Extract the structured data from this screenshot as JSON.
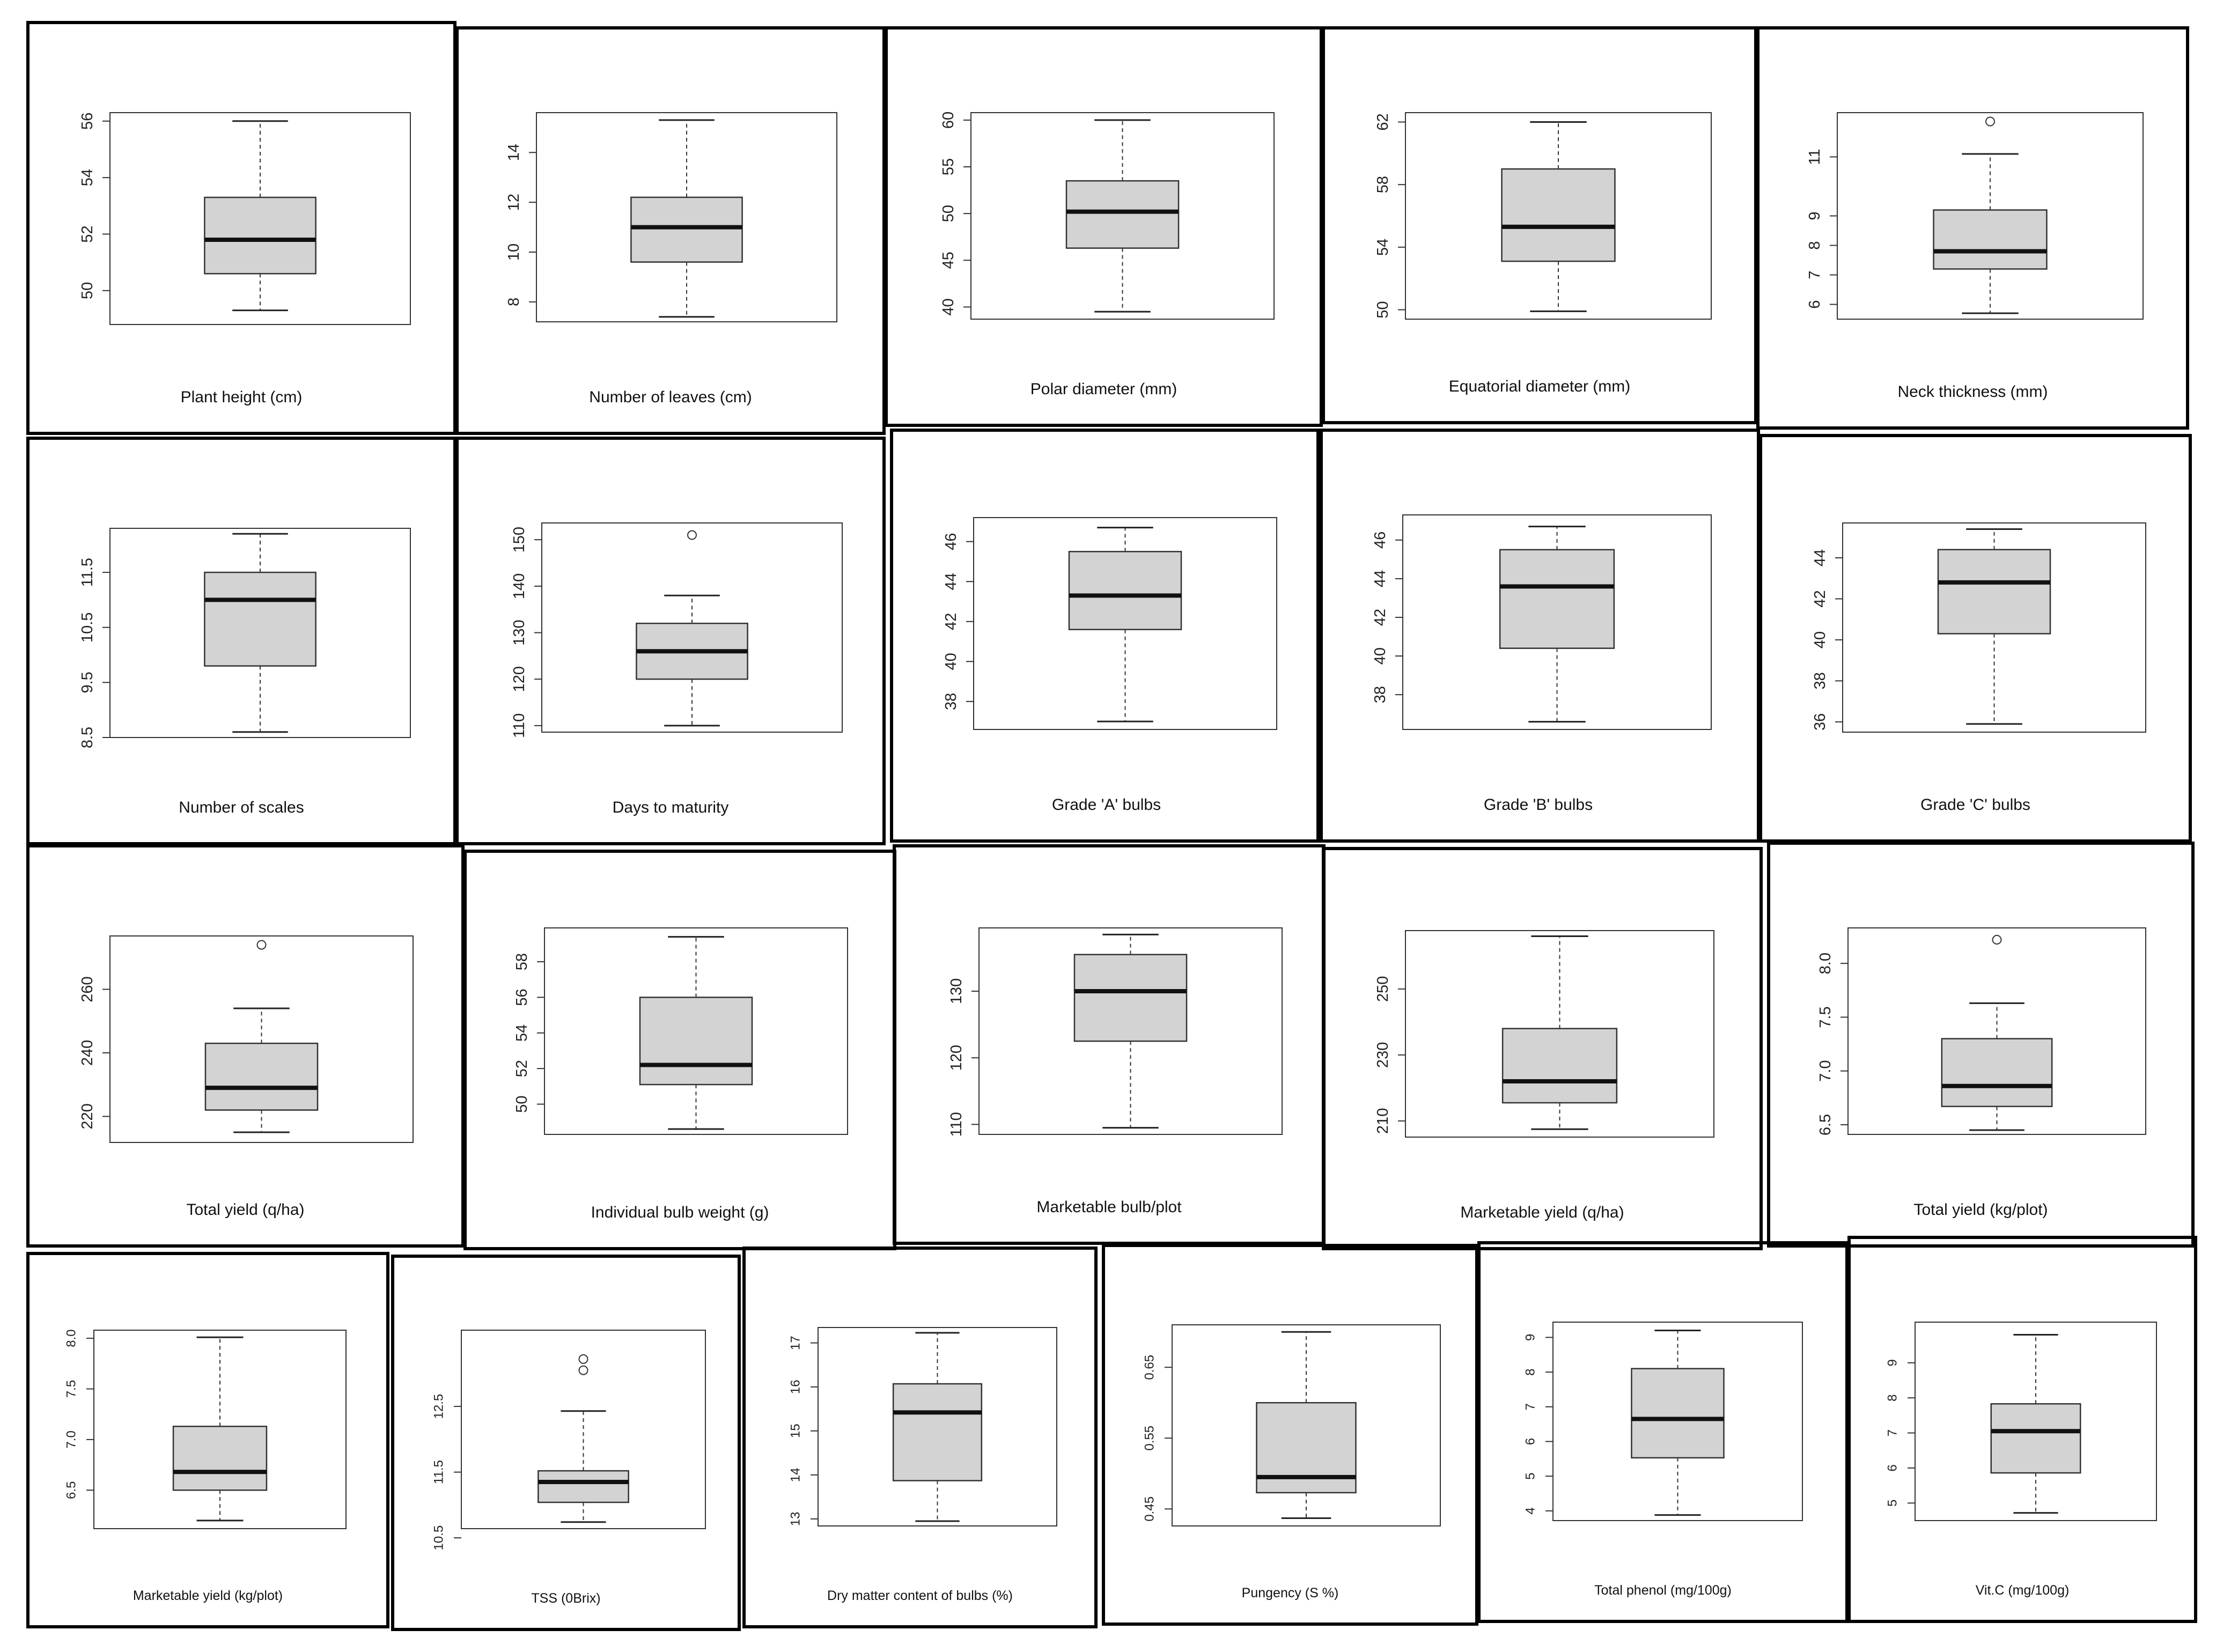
{
  "chart_data": [
    {
      "type": "box",
      "xlabel": "Plant height (cm)",
      "ylim": [
        48.8,
        56.3
      ],
      "ticks": [
        "50",
        "52",
        "54",
        "56"
      ],
      "box": {
        "min": 49.3,
        "q1": 50.6,
        "median": 51.8,
        "q3": 53.3,
        "max": 56.0,
        "outliers": []
      }
    },
    {
      "type": "box",
      "xlabel": "Number of leaves (cm)",
      "ylim": [
        7.2,
        15.6
      ],
      "ticks": [
        "8",
        "10",
        "12",
        "14"
      ],
      "box": {
        "min": 7.4,
        "q1": 9.6,
        "median": 11.0,
        "q3": 12.2,
        "max": 15.3,
        "outliers": []
      }
    },
    {
      "type": "box",
      "xlabel": "Polar diameter (mm)",
      "ylim": [
        38.7,
        60.8
      ],
      "ticks": [
        "40",
        "45",
        "50",
        "55",
        "60"
      ],
      "box": {
        "min": 39.5,
        "q1": 46.3,
        "median": 50.2,
        "q3": 53.5,
        "max": 60.0,
        "outliers": []
      }
    },
    {
      "type": "box",
      "xlabel": "Equatorial diameter (mm)",
      "ylim": [
        49.4,
        62.6
      ],
      "ticks": [
        "50",
        "54",
        "58",
        "62"
      ],
      "box": {
        "min": 49.9,
        "q1": 53.1,
        "median": 55.3,
        "q3": 59.0,
        "max": 62.0,
        "outliers": []
      }
    },
    {
      "type": "box",
      "xlabel": "Neck thickness (mm)",
      "ylim": [
        5.5,
        12.5
      ],
      "ticks": [
        "6",
        "7",
        "8",
        "9",
        "11"
      ],
      "box": {
        "min": 5.7,
        "q1": 7.2,
        "median": 7.8,
        "q3": 9.2,
        "max": 11.1,
        "outliers": [
          12.2
        ]
      }
    },
    {
      "type": "box",
      "xlabel": "Number of scales",
      "ylim": [
        8.5,
        12.3
      ],
      "ticks": [
        "8.5",
        "9.5",
        "10.5",
        "11.5"
      ],
      "box": {
        "min": 8.6,
        "q1": 9.8,
        "median": 11.0,
        "q3": 11.5,
        "max": 12.2,
        "outliers": []
      }
    },
    {
      "type": "box",
      "xlabel": "Days to maturity",
      "ylim": [
        108.6,
        153.6
      ],
      "ticks": [
        "110",
        "120",
        "130",
        "140",
        "150"
      ],
      "box": {
        "min": 110,
        "q1": 120,
        "median": 126,
        "q3": 132,
        "max": 138,
        "outliers": [
          151
        ]
      }
    },
    {
      "type": "box",
      "xlabel": "Grade 'A' bulbs",
      "ylim": [
        36.6,
        47.2
      ],
      "ticks": [
        "38",
        "40",
        "42",
        "44",
        "46"
      ],
      "box": {
        "min": 37.0,
        "q1": 41.6,
        "median": 43.3,
        "q3": 45.5,
        "max": 46.7,
        "outliers": []
      }
    },
    {
      "type": "box",
      "xlabel": "Grade 'B' bulbs",
      "ylim": [
        36.2,
        47.3
      ],
      "ticks": [
        "38",
        "40",
        "42",
        "44",
        "46"
      ],
      "box": {
        "min": 36.6,
        "q1": 40.4,
        "median": 43.6,
        "q3": 45.5,
        "max": 46.7,
        "outliers": []
      }
    },
    {
      "type": "box",
      "xlabel": "Grade 'C' bulbs",
      "ylim": [
        35.5,
        45.7
      ],
      "ticks": [
        "36",
        "38",
        "40",
        "42",
        "44"
      ],
      "box": {
        "min": 35.9,
        "q1": 40.3,
        "median": 42.8,
        "q3": 44.4,
        "max": 45.4,
        "outliers": []
      }
    },
    {
      "type": "box",
      "xlabel": "Total yield (q/ha)",
      "ylim": [
        211.8,
        276.8
      ],
      "ticks": [
        "220",
        "240",
        "260"
      ],
      "box": {
        "min": 215,
        "q1": 222,
        "median": 229,
        "q3": 243,
        "max": 254,
        "outliers": [
          274
        ]
      }
    },
    {
      "type": "box",
      "xlabel": "Individual bulb weight (g)",
      "ylim": [
        48.3,
        59.9
      ],
      "ticks": [
        "50",
        "52",
        "54",
        "56",
        "58"
      ],
      "box": {
        "min": 48.6,
        "q1": 51.1,
        "median": 52.2,
        "q3": 56.0,
        "max": 59.4,
        "outliers": []
      }
    },
    {
      "type": "box",
      "xlabel": "Marketable bulb/plot",
      "ylim": [
        108.5,
        139.5
      ],
      "ticks": [
        "110",
        "120",
        "130"
      ],
      "box": {
        "min": 109.5,
        "q1": 122.5,
        "median": 130.0,
        "q3": 135.5,
        "max": 138.5,
        "outliers": []
      }
    },
    {
      "type": "box",
      "xlabel": "Marketable yield (q/ha)",
      "ylim": [
        205.1,
        267.7
      ],
      "ticks": [
        "210",
        "230",
        "250"
      ],
      "box": {
        "min": 207.5,
        "q1": 215.5,
        "median": 222,
        "q3": 238,
        "max": 266,
        "outliers": []
      }
    },
    {
      "type": "box",
      "xlabel": "Total yield (kg/plot)",
      "ylim": [
        6.41,
        8.33
      ],
      "ticks": [
        "6.5",
        "7.0",
        "7.5",
        "8.0"
      ],
      "box": {
        "min": 6.45,
        "q1": 6.67,
        "median": 6.86,
        "q3": 7.3,
        "max": 7.63,
        "outliers": [
          8.22
        ]
      }
    },
    {
      "type": "box",
      "xlabel": "Marketable yield (kg/plot)",
      "ylim": [
        6.12,
        8.08
      ],
      "ticks": [
        "6.5",
        "7.0",
        "7.5",
        "8.0"
      ],
      "box": {
        "min": 6.2,
        "q1": 6.5,
        "median": 6.68,
        "q3": 7.13,
        "max": 8.01,
        "outliers": []
      }
    },
    {
      "type": "box",
      "xlabel": "TSS (0Brix)",
      "ylim": [
        10.64,
        13.66
      ],
      "ticks": [
        "10.5",
        "11.5",
        "12.5"
      ],
      "box": {
        "min": 10.74,
        "q1": 11.04,
        "median": 11.35,
        "q3": 11.52,
        "max": 12.43,
        "outliers": [
          13.05,
          13.22
        ]
      }
    },
    {
      "type": "box",
      "xlabel": "Dry matter content of bulbs (%)",
      "ylim": [
        12.84,
        17.35
      ],
      "ticks": [
        "13",
        "14",
        "15",
        "16",
        "17"
      ],
      "box": {
        "min": 12.95,
        "q1": 13.87,
        "median": 15.42,
        "q3": 16.07,
        "max": 17.23,
        "outliers": []
      }
    },
    {
      "type": "box",
      "xlabel": "Pungency (S %)",
      "ylim": [
        0.426,
        0.71
      ],
      "ticks": [
        "0.45",
        "0.55",
        "0.65"
      ],
      "box": {
        "min": 0.437,
        "q1": 0.473,
        "median": 0.495,
        "q3": 0.6,
        "max": 0.7,
        "outliers": []
      }
    },
    {
      "type": "box",
      "xlabel": "Total phenol (mg/100g)",
      "ylim": [
        3.72,
        9.44
      ],
      "ticks": [
        "4",
        "5",
        "6",
        "7",
        "8",
        "9"
      ],
      "box": {
        "min": 3.88,
        "q1": 5.53,
        "median": 6.65,
        "q3": 8.1,
        "max": 9.2,
        "outliers": []
      }
    },
    {
      "type": "box",
      "xlabel": "Vit.C (mg/100g)",
      "ylim": [
        4.5,
        10.16
      ],
      "ticks": [
        "5",
        "6",
        "7",
        "8",
        "9"
      ],
      "box": {
        "min": 4.72,
        "q1": 5.86,
        "median": 7.05,
        "q3": 7.83,
        "max": 9.8,
        "outliers": []
      }
    }
  ]
}
